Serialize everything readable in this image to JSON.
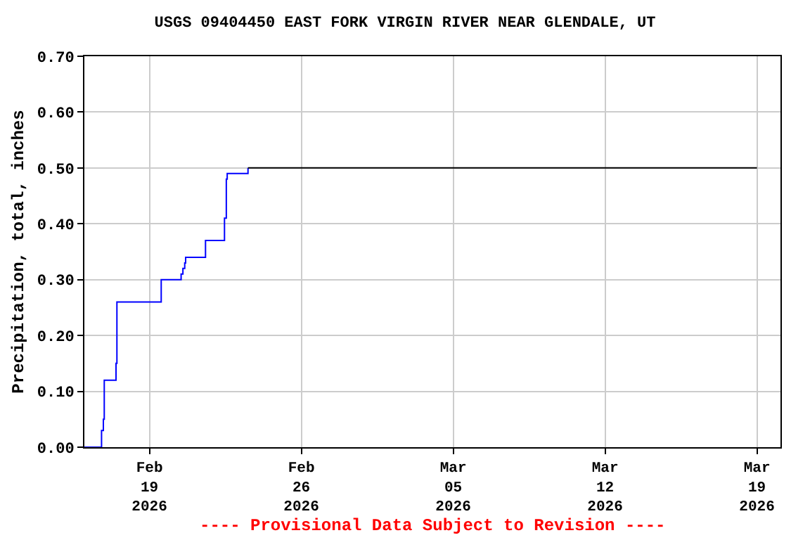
{
  "chart_data": {
    "type": "step",
    "title": "USGS 09404450 EAST FORK VIRGIN RIVER NEAR GLENDALE, UT",
    "ylabel": "Precipitation, total, inches",
    "series": [
      {
        "color": "#0000ff",
        "x": [
          "2026-02-16T00:00",
          "2026-02-16T19:00",
          "2026-02-16T21:00",
          "2026-02-16T22:00",
          "2026-02-17T11:00",
          "2026-02-17T12:00",
          "2026-02-19T13:00",
          "2026-02-20T11:00",
          "2026-02-20T13:00",
          "2026-02-20T15:00",
          "2026-02-20T16:00",
          "2026-02-21T14:00",
          "2026-02-22T11:00",
          "2026-02-22T13:00",
          "2026-02-22T14:00",
          "2026-02-23T13:00"
        ],
        "values": [
          0.0,
          0.03,
          0.05,
          0.12,
          0.15,
          0.26,
          0.3,
          0.31,
          0.32,
          0.33,
          0.34,
          0.37,
          0.41,
          0.48,
          0.49,
          0.5
        ]
      },
      {
        "color": "#000000",
        "x": [
          "2026-02-23T13:00",
          "2026-03-19T00:00"
        ],
        "values": [
          0.5,
          0.5
        ]
      }
    ],
    "xlim": [
      "2026-02-16T00:00",
      "2026-03-20T02:00"
    ],
    "xticks": [
      {
        "value": "2026-02-19",
        "label": "Feb\n19\n2026"
      },
      {
        "value": "2026-02-26",
        "label": "Feb\n26\n2026"
      },
      {
        "value": "2026-03-05",
        "label": "Mar\n05\n2026"
      },
      {
        "value": "2026-03-12",
        "label": "Mar\n12\n2026"
      },
      {
        "value": "2026-03-19",
        "label": "Mar\n19\n2026"
      }
    ],
    "ylim": [
      0,
      0.7
    ],
    "yticks": [
      {
        "value": 0,
        "label": "0.00"
      },
      {
        "value": 0.1,
        "label": "0.10"
      },
      {
        "value": 0.2,
        "label": "0.20"
      },
      {
        "value": 0.3,
        "label": "0.30"
      },
      {
        "value": 0.4,
        "label": "0.40"
      },
      {
        "value": 0.5,
        "label": "0.50"
      },
      {
        "value": 0.6,
        "label": "0.60"
      },
      {
        "value": 0.7,
        "label": "0.70"
      }
    ],
    "grid": true,
    "annotations": [
      "---- Provisional Data Subject to Revision ----"
    ]
  }
}
